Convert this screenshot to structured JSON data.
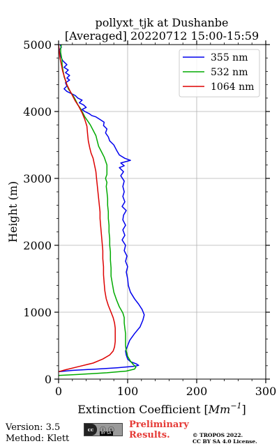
{
  "chart_data": {
    "type": "line",
    "title_line1": "pollyxt_tjk at Dushanbe",
    "title_line2": "[Averaged] 20220712 15:00-15:59",
    "xlabel": "Extinction Coefficient [$Mm^{-1}$]",
    "xlabel_parts": {
      "main": "Extinction Coefficient [",
      "mm": "Mm",
      "sup": "−1",
      "close": "]"
    },
    "ylabel": "Height (m)",
    "xlim": [
      0,
      300
    ],
    "ylim": [
      0,
      5000
    ],
    "xticks": [
      0,
      100,
      200,
      300
    ],
    "yticks": [
      0,
      1000,
      2000,
      3000,
      4000,
      5000
    ],
    "grid": true,
    "legend_position": "top-right",
    "series": [
      {
        "name": "355 nm",
        "color": "#0000ee",
        "points": [
          [
            0,
            110
          ],
          [
            20,
            130
          ],
          [
            55,
            150
          ],
          [
            85,
            170
          ],
          [
            108,
            190
          ],
          [
            116,
            205
          ],
          [
            112,
            230
          ],
          [
            104,
            260
          ],
          [
            100,
            300
          ],
          [
            98,
            360
          ],
          [
            97,
            420
          ],
          [
            100,
            500
          ],
          [
            103,
            580
          ],
          [
            110,
            680
          ],
          [
            118,
            780
          ],
          [
            122,
            880
          ],
          [
            124,
            960
          ],
          [
            121,
            1040
          ],
          [
            116,
            1120
          ],
          [
            110,
            1200
          ],
          [
            104,
            1300
          ],
          [
            101,
            1400
          ],
          [
            100,
            1500
          ],
          [
            98,
            1600
          ],
          [
            100,
            1680
          ],
          [
            97,
            1760
          ],
          [
            99,
            1840
          ],
          [
            95,
            1920
          ],
          [
            97,
            2000
          ],
          [
            92,
            2080
          ],
          [
            96,
            2150
          ],
          [
            93,
            2230
          ],
          [
            97,
            2300
          ],
          [
            93,
            2380
          ],
          [
            94,
            2450
          ],
          [
            98,
            2520
          ],
          [
            92,
            2580
          ],
          [
            96,
            2650
          ],
          [
            93,
            2730
          ],
          [
            95,
            2800
          ],
          [
            93,
            2880
          ],
          [
            95,
            2960
          ],
          [
            90,
            3040
          ],
          [
            94,
            3100
          ],
          [
            88,
            3160
          ],
          [
            95,
            3190
          ],
          [
            90,
            3230
          ],
          [
            104,
            3270
          ],
          [
            96,
            3300
          ],
          [
            88,
            3350
          ],
          [
            84,
            3420
          ],
          [
            80,
            3500
          ],
          [
            74,
            3560
          ],
          [
            72,
            3620
          ],
          [
            68,
            3680
          ],
          [
            70,
            3740
          ],
          [
            65,
            3790
          ],
          [
            66,
            3840
          ],
          [
            60,
            3880
          ],
          [
            54,
            3920
          ],
          [
            48,
            3940
          ],
          [
            44,
            3970
          ],
          [
            38,
            4000
          ],
          [
            34,
            4030
          ],
          [
            40,
            4060
          ],
          [
            36,
            4100
          ],
          [
            30,
            4130
          ],
          [
            34,
            4170
          ],
          [
            28,
            4200
          ],
          [
            24,
            4240
          ],
          [
            18,
            4270
          ],
          [
            12,
            4300
          ],
          [
            8,
            4340
          ],
          [
            12,
            4380
          ],
          [
            10,
            4430
          ],
          [
            16,
            4470
          ],
          [
            12,
            4500
          ],
          [
            16,
            4540
          ],
          [
            10,
            4580
          ],
          [
            14,
            4620
          ],
          [
            8,
            4660
          ],
          [
            12,
            4700
          ],
          [
            6,
            4760
          ],
          [
            4,
            4800
          ],
          [
            2,
            4860
          ],
          [
            1,
            4920
          ],
          [
            4,
            4960
          ],
          [
            2,
            5000
          ]
        ]
      },
      {
        "name": "532 nm",
        "color": "#00aa00",
        "points": [
          [
            0,
            55
          ],
          [
            30,
            70
          ],
          [
            70,
            95
          ],
          [
            98,
            120
          ],
          [
            110,
            150
          ],
          [
            112,
            180
          ],
          [
            108,
            220
          ],
          [
            104,
            270
          ],
          [
            100,
            340
          ],
          [
            98,
            420
          ],
          [
            97,
            500
          ],
          [
            97,
            600
          ],
          [
            97,
            680
          ],
          [
            96,
            760
          ],
          [
            95,
            840
          ],
          [
            95,
            920
          ],
          [
            93,
            990
          ],
          [
            88,
            1080
          ],
          [
            84,
            1180
          ],
          [
            80,
            1300
          ],
          [
            78,
            1420
          ],
          [
            76,
            1540
          ],
          [
            76,
            1660
          ],
          [
            75,
            1780
          ],
          [
            75,
            1900
          ],
          [
            74,
            2000
          ],
          [
            74,
            2100
          ],
          [
            73,
            2200
          ],
          [
            73,
            2300
          ],
          [
            72,
            2400
          ],
          [
            72,
            2500
          ],
          [
            71,
            2600
          ],
          [
            71,
            2700
          ],
          [
            70,
            2800
          ],
          [
            69,
            2880
          ],
          [
            70,
            2940
          ],
          [
            68,
            3000
          ],
          [
            70,
            3060
          ],
          [
            70,
            3140
          ],
          [
            70,
            3200
          ],
          [
            68,
            3260
          ],
          [
            66,
            3320
          ],
          [
            62,
            3400
          ],
          [
            58,
            3480
          ],
          [
            56,
            3560
          ],
          [
            54,
            3640
          ],
          [
            50,
            3720
          ],
          [
            46,
            3800
          ],
          [
            42,
            3860
          ],
          [
            38,
            3920
          ],
          [
            35,
            3980
          ],
          [
            32,
            4040
          ],
          [
            28,
            4100
          ],
          [
            25,
            4160
          ],
          [
            22,
            4220
          ],
          [
            18,
            4280
          ],
          [
            14,
            4340
          ],
          [
            12,
            4400
          ],
          [
            10,
            4460
          ],
          [
            8,
            4520
          ],
          [
            7,
            4580
          ],
          [
            6,
            4640
          ],
          [
            5,
            4700
          ],
          [
            5,
            4760
          ],
          [
            4,
            4820
          ],
          [
            3,
            4880
          ],
          [
            3,
            4940
          ],
          [
            4,
            5000
          ]
        ]
      },
      {
        "name": "1064 nm",
        "color": "#dd0000",
        "points": [
          [
            0,
            110
          ],
          [
            10,
            140
          ],
          [
            30,
            190
          ],
          [
            50,
            240
          ],
          [
            64,
            300
          ],
          [
            74,
            360
          ],
          [
            79,
            420
          ],
          [
            81,
            480
          ],
          [
            82,
            560
          ],
          [
            82,
            660
          ],
          [
            82,
            760
          ],
          [
            81,
            840
          ],
          [
            79,
            920
          ],
          [
            76,
            1000
          ],
          [
            72,
            1100
          ],
          [
            69,
            1200
          ],
          [
            67,
            1320
          ],
          [
            66,
            1440
          ],
          [
            65,
            1560
          ],
          [
            65,
            1680
          ],
          [
            64,
            1800
          ],
          [
            64,
            1920
          ],
          [
            63,
            2040
          ],
          [
            62,
            2160
          ],
          [
            61,
            2280
          ],
          [
            60,
            2400
          ],
          [
            60,
            2500
          ],
          [
            59,
            2600
          ],
          [
            58,
            2700
          ],
          [
            57,
            2800
          ],
          [
            56,
            2900
          ],
          [
            55,
            3000
          ],
          [
            54,
            3100
          ],
          [
            52,
            3200
          ],
          [
            50,
            3300
          ],
          [
            47,
            3380
          ],
          [
            45,
            3460
          ],
          [
            43,
            3560
          ],
          [
            42,
            3660
          ],
          [
            41,
            3780
          ],
          [
            38,
            3880
          ],
          [
            34,
            3980
          ],
          [
            29,
            4080
          ],
          [
            24,
            4160
          ],
          [
            20,
            4240
          ],
          [
            16,
            4320
          ],
          [
            12,
            4400
          ],
          [
            9,
            4500
          ],
          [
            6,
            4600
          ],
          [
            4,
            4700
          ],
          [
            2,
            4800
          ],
          [
            1,
            4900
          ],
          [
            0,
            5000
          ]
        ]
      }
    ]
  },
  "footer": {
    "version": "Version: 3.5",
    "method": "Method: Klett",
    "preliminary_line1": "Preliminary",
    "preliminary_line2": "Results.",
    "copyright_line1": "© TROPOS 2022.",
    "copyright_line2": "CC BY SA 4.0 License.",
    "cc_badge_left": "cc",
    "cc_badge_icons": "ⓘ ⓢ",
    "cc_badge_text": "BY SA"
  }
}
